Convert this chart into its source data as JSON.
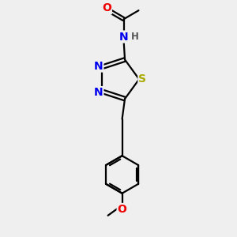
{
  "background_color": "#efefef",
  "atom_colors": {
    "C": "#000000",
    "N": "#0000ee",
    "S": "#aaaa00",
    "O": "#ee0000",
    "H": "#555555"
  },
  "bond_color": "#000000",
  "bond_width": 1.6,
  "figsize": [
    3.0,
    3.0
  ],
  "dpi": 100,
  "xlim": [
    0,
    10
  ],
  "ylim": [
    0,
    10
  ]
}
